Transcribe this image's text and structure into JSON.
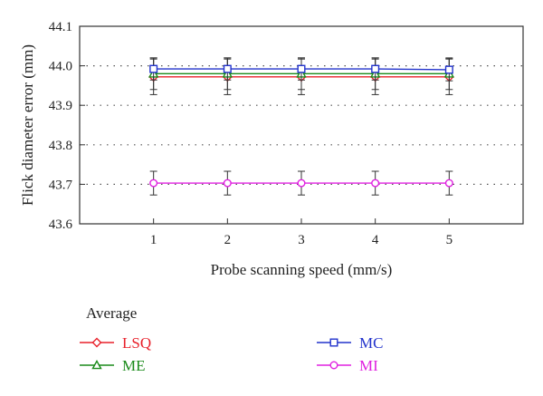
{
  "chart_data": {
    "type": "line",
    "xlabel": "Probe scanning speed (mm/s)",
    "ylabel": "Flick diameter error (mm)",
    "x": [
      1,
      2,
      3,
      4,
      5
    ],
    "x_ticks": [
      "1",
      "2",
      "3",
      "4",
      "5"
    ],
    "xlim": [
      0,
      6
    ],
    "ylim": [
      43.6,
      44.1
    ],
    "y_ticks": [
      "43.6",
      "43.7",
      "43.8",
      "43.9",
      "44.0",
      "44.1"
    ],
    "grid": "horizontal dotted",
    "legend_title": "Average",
    "legend_position": "bottom",
    "series": [
      {
        "name": "LSQ",
        "values": [
          43.972,
          43.972,
          43.972,
          43.972,
          43.972
        ],
        "error": 0.045,
        "color": "#e8202a",
        "marker": "diamond"
      },
      {
        "name": "ME",
        "values": [
          43.98,
          43.98,
          43.98,
          43.98,
          43.98
        ],
        "error": 0.04,
        "color": "#1a8a1a",
        "marker": "triangle"
      },
      {
        "name": "MC",
        "values": [
          43.992,
          43.992,
          43.992,
          43.992,
          43.99
        ],
        "error": 0.028,
        "color": "#2233cc",
        "marker": "square"
      },
      {
        "name": "MI",
        "values": [
          43.703,
          43.703,
          43.703,
          43.703,
          43.703
        ],
        "error": 0.03,
        "color": "#e020e0",
        "marker": "circle"
      }
    ]
  }
}
